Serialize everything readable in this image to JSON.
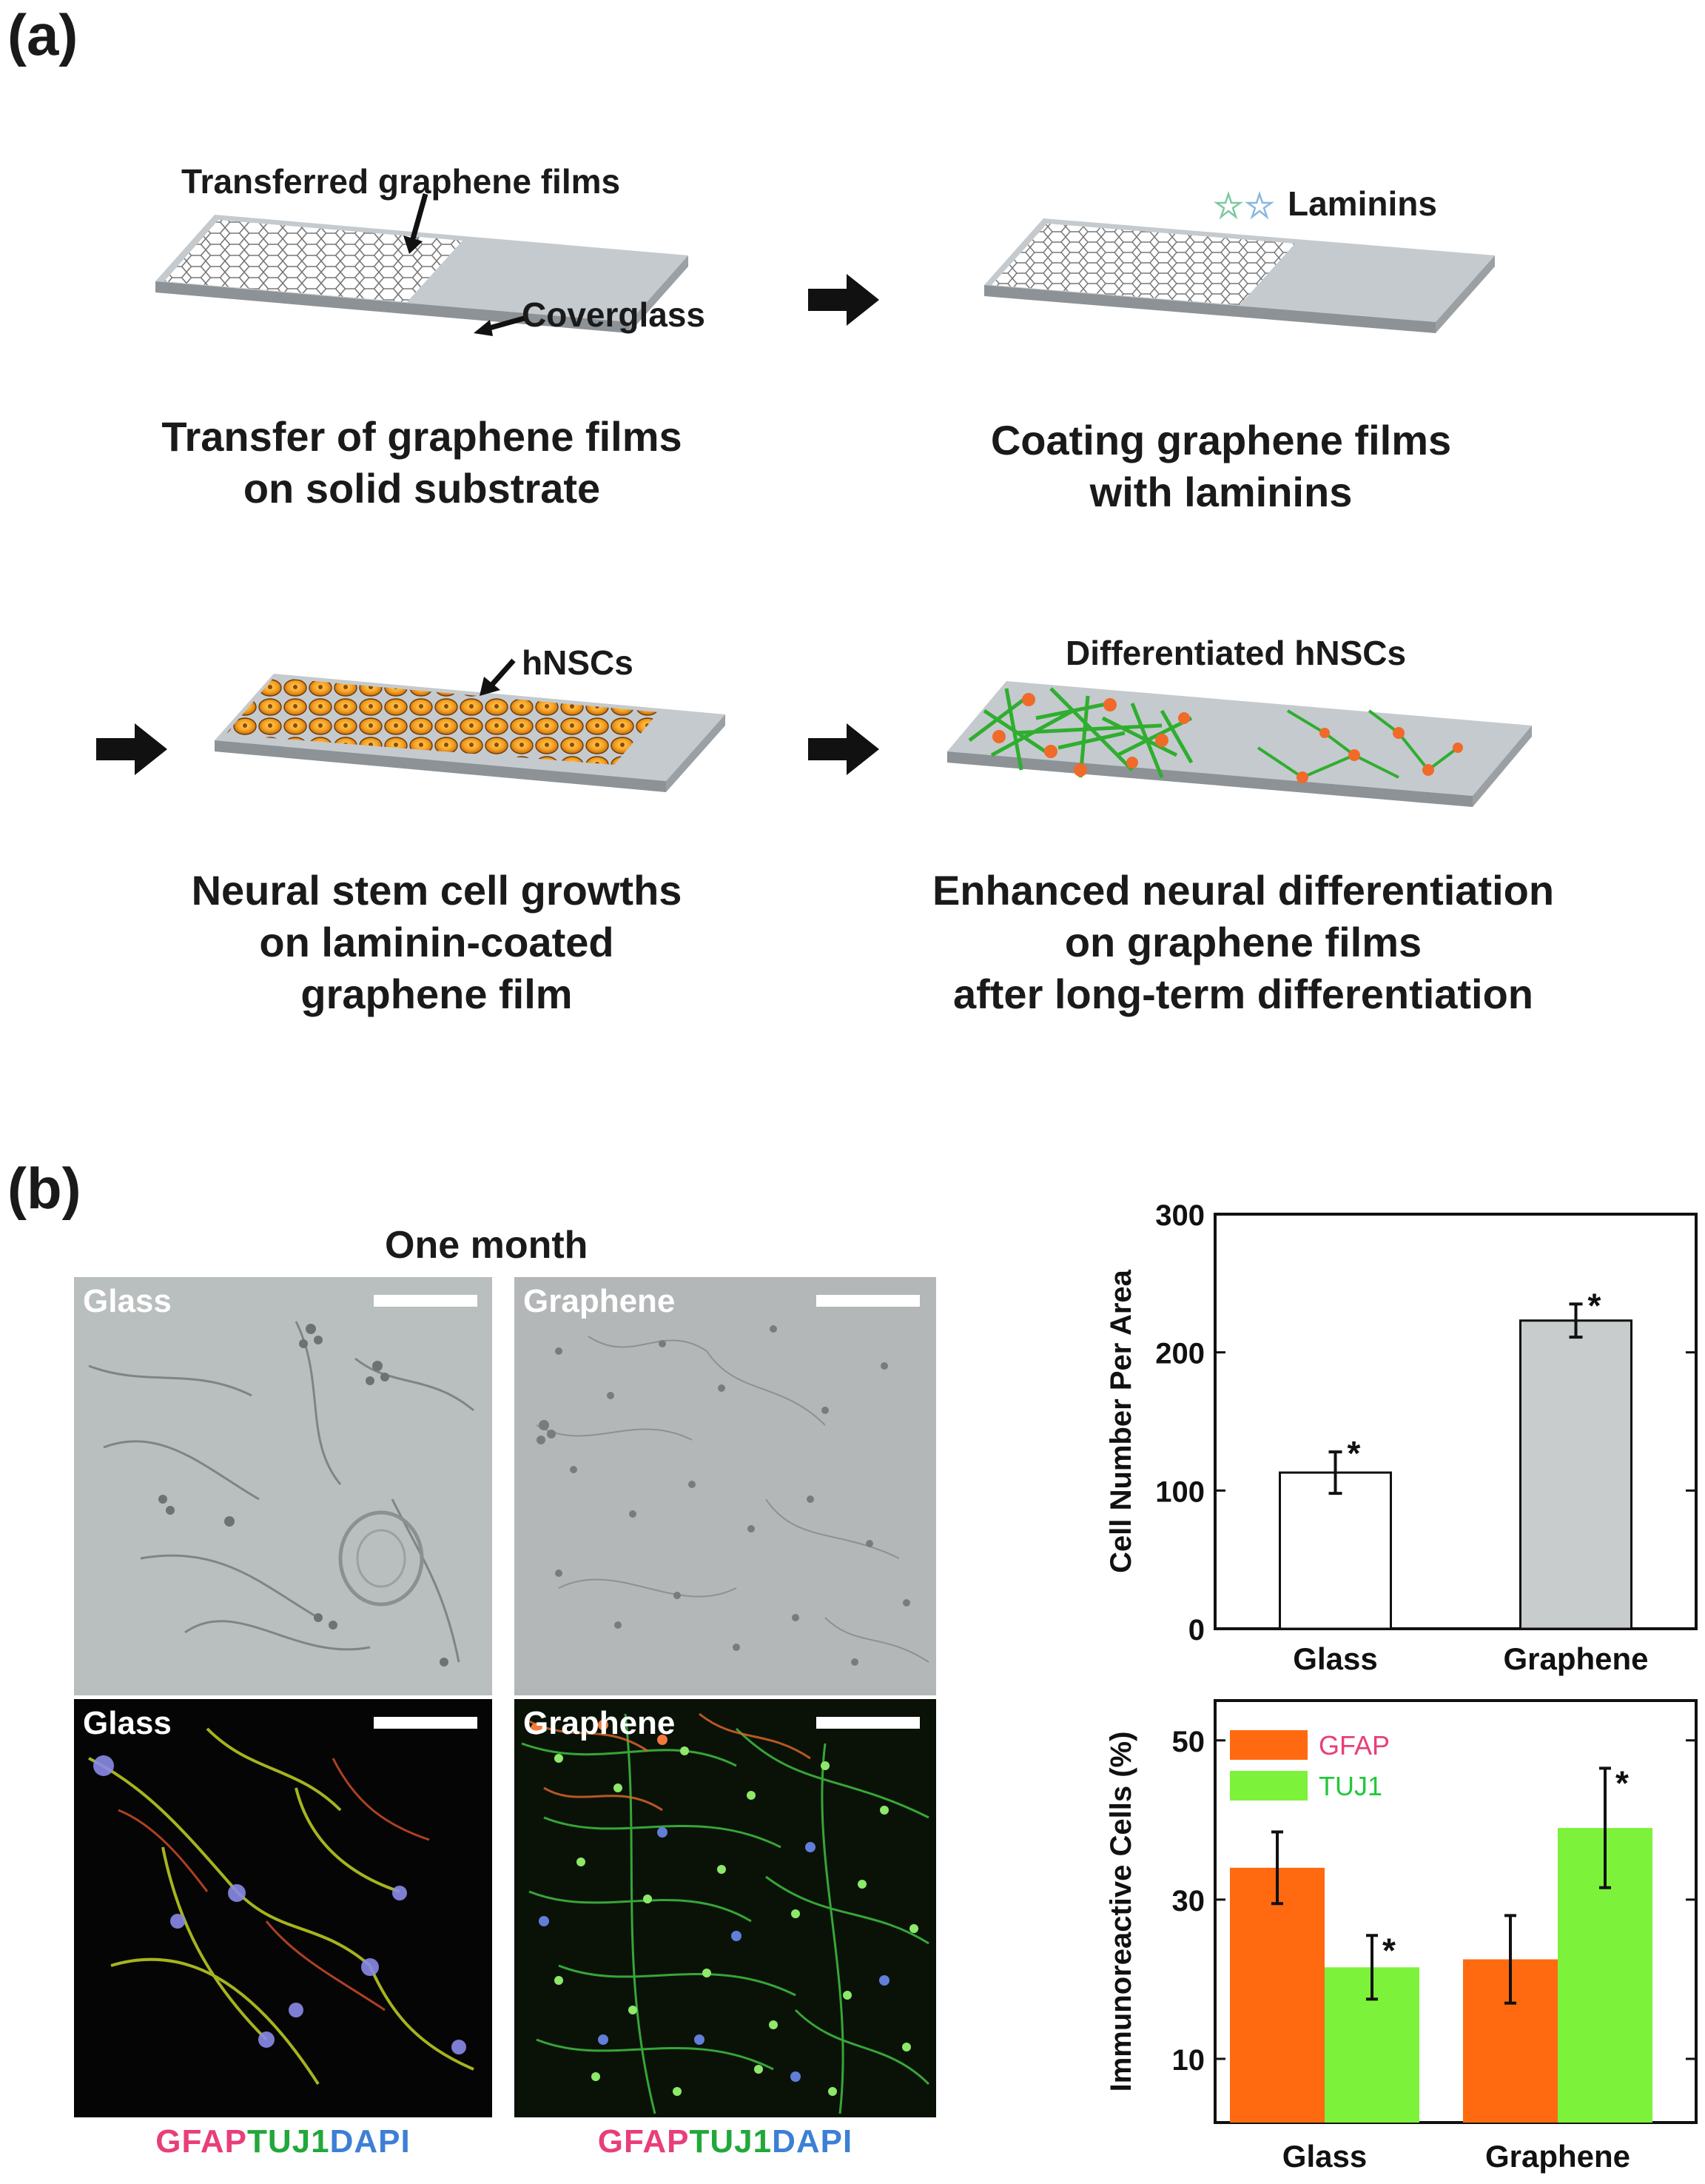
{
  "panel_a": {
    "label": "(a)",
    "steps": [
      {
        "caption": "Transfer of  graphene films\non solid substrate",
        "callouts": [
          "Transferred graphene films",
          "Coverglass"
        ]
      },
      {
        "caption": "Coating graphene films\nwith laminins",
        "callouts": [
          "Laminins"
        ]
      },
      {
        "caption": "Neural stem cell growths\non laminin-coated\ngraphene film",
        "callouts": [
          "hNSCs"
        ]
      },
      {
        "caption": "Enhanced neural differentiation\non graphene films\nafter long-term differentiation",
        "callouts": [
          "Differentiated hNSCs"
        ]
      }
    ]
  },
  "panel_b": {
    "label": "(b)",
    "title": "One month",
    "images": [
      {
        "label": "Glass"
      },
      {
        "label": "Graphene"
      },
      {
        "label": "Glass"
      },
      {
        "label": "Graphene"
      }
    ],
    "stain_legend": {
      "gfap": "GFAP",
      "tuj1": "TUJ1",
      "dapi": "DAPI"
    },
    "colors": {
      "gfap": "#e83e7a",
      "tuj1": "#22a83a",
      "dapi": "#3d7fd6",
      "bar_gfap": "#ff6a10",
      "bar_tuj1": "#7cf23a",
      "bar_glass": "#ffffff",
      "bar_graphene": "#c8cccc"
    }
  },
  "chart_data": [
    {
      "type": "bar",
      "categories": [
        "Glass",
        "Graphene"
      ],
      "values": [
        113,
        223
      ],
      "errors": [
        15,
        12
      ],
      "significance": [
        "*",
        "*"
      ],
      "ylabel": "Cell Number Per Area",
      "ylim": [
        0,
        300
      ],
      "yticks": [
        0,
        100,
        200,
        300
      ]
    },
    {
      "type": "bar",
      "categories": [
        "Glass",
        "Graphene"
      ],
      "series": [
        {
          "name": "GFAP",
          "values": [
            34,
            22.5
          ],
          "errors": [
            4.5,
            5.5
          ],
          "significance": [
            "",
            ""
          ]
        },
        {
          "name": "TUJ1",
          "values": [
            21.5,
            39
          ],
          "errors": [
            4,
            7.5
          ],
          "significance": [
            "*",
            "*"
          ]
        }
      ],
      "ylabel": "Immunoreactive Cells (%)",
      "ylim": [
        2,
        55
      ],
      "yticks": [
        10,
        30,
        50
      ],
      "legend": "top-left"
    }
  ]
}
